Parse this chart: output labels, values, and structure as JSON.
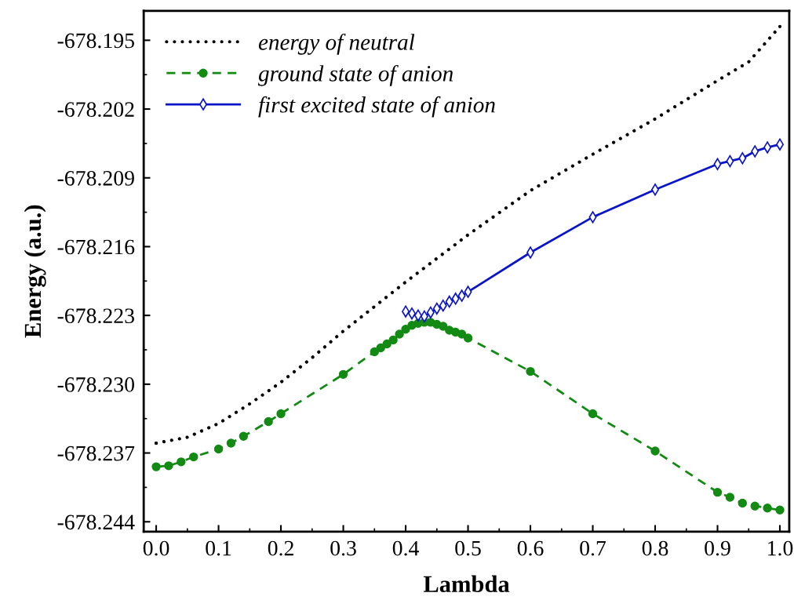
{
  "chart_data": {
    "type": "line",
    "xlabel": "Lambda",
    "ylabel": "Energy (a.u.)",
    "xlim": [
      -0.02,
      1.015
    ],
    "ylim": [
      -678.245,
      -678.192
    ],
    "xticks": [
      {
        "value": 0,
        "label": "0.0"
      },
      0.1,
      0.2,
      0.3,
      0.4,
      0.5,
      0.6,
      0.7,
      0.8,
      0.9,
      {
        "value": 1,
        "label": "1.0"
      }
    ],
    "yticks": [
      -678.244,
      -678.237,
      {
        "value": -678.23,
        "label": "-678.230"
      },
      -678.223,
      -678.216,
      -678.209,
      -678.202,
      -678.195
    ],
    "grid": false,
    "legend": "top left",
    "series": [
      {
        "name": "energy of neutral",
        "color": "#000000",
        "marker": "none",
        "line_style": "dotted",
        "x": [
          0,
          0.05,
          0.1,
          0.15,
          0.2,
          0.25,
          0.3,
          0.35,
          0.4,
          0.45,
          0.5,
          0.6,
          0.7,
          0.8,
          0.9,
          0.95,
          1.0
        ],
        "values": [
          -678.236,
          -678.2354,
          -678.234,
          -678.232,
          -678.2298,
          -678.2273,
          -678.2246,
          -678.2221,
          -678.2196,
          -678.2172,
          -678.2148,
          -678.2103,
          -678.2066,
          -678.203,
          -678.1991,
          -678.1972,
          -678.1936
        ]
      },
      {
        "name": "ground state of anion",
        "color": "#138a13",
        "marker": "circle",
        "line_style": "dashed",
        "x": [
          0,
          0.02,
          0.04,
          0.06,
          0.1,
          0.12,
          0.14,
          0.18,
          0.2,
          0.3,
          0.35,
          0.36,
          0.37,
          0.38,
          0.39,
          0.4,
          0.41,
          0.42,
          0.43,
          0.44,
          0.45,
          0.46,
          0.47,
          0.48,
          0.49,
          0.5,
          0.6,
          0.7,
          0.8,
          0.9,
          0.92,
          0.94,
          0.96,
          0.98,
          1.0
        ],
        "values": [
          -678.2384,
          -678.2383,
          -678.2379,
          -678.2374,
          -678.2366,
          -678.236,
          -678.2353,
          -678.2338,
          -678.233,
          -678.229,
          -678.2267,
          -678.2263,
          -678.2259,
          -678.2255,
          -678.2249,
          -678.2244,
          -678.224,
          -678.2238,
          -678.2237,
          -678.2237,
          -678.2239,
          -678.2241,
          -678.2245,
          -678.2247,
          -678.2249,
          -678.2253,
          -678.2287,
          -678.233,
          -678.2368,
          -678.241,
          -678.2415,
          -678.2421,
          -678.2424,
          -678.2426,
          -678.2428
        ]
      },
      {
        "name": "first excited state of anion",
        "color": "#0a14c8",
        "marker": "diamond",
        "line_style": "solid",
        "x": [
          0.4,
          0.41,
          0.42,
          0.43,
          0.44,
          0.45,
          0.46,
          0.47,
          0.48,
          0.49,
          0.5,
          0.6,
          0.7,
          0.8,
          0.9,
          0.92,
          0.94,
          0.96,
          0.98,
          1.0
        ],
        "values": [
          -678.2226,
          -678.2228,
          -678.223,
          -678.2231,
          -678.2227,
          -678.2223,
          -678.222,
          -678.2216,
          -678.2213,
          -678.221,
          -678.2206,
          -678.2166,
          -678.213,
          -678.2102,
          -678.2076,
          -678.2073,
          -678.207,
          -678.2063,
          -678.2059,
          -678.2056
        ]
      }
    ]
  }
}
